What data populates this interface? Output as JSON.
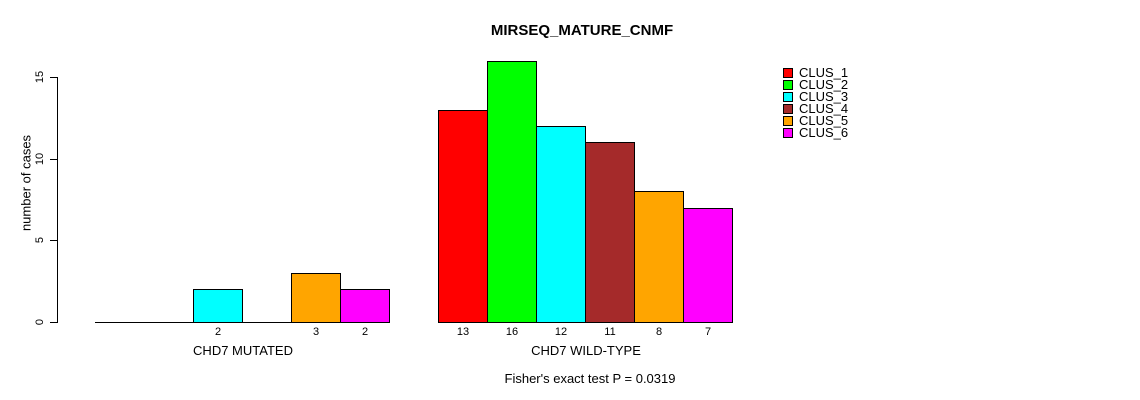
{
  "chart_data": {
    "type": "bar",
    "title": "MIRSEQ_MATURE_CNMF",
    "ylabel": "number of cases",
    "xlabel": "",
    "footnote": "Fisher's exact test P = 0.0319",
    "ylim": [
      0,
      16
    ],
    "yticks": [
      0,
      5,
      10,
      15
    ],
    "grid": false,
    "legend_position": "top-right",
    "value_labels": "shown under each nonzero bar",
    "categories": [
      "CHD7 MUTATED",
      "CHD7 WILD-TYPE"
    ],
    "series": [
      {
        "name": "CLUS_1",
        "color": "#FF0000",
        "values": [
          0,
          13
        ]
      },
      {
        "name": "CLUS_2",
        "color": "#00FF00",
        "values": [
          0,
          16
        ]
      },
      {
        "name": "CLUS_3",
        "color": "#00FFFF",
        "values": [
          2,
          12
        ]
      },
      {
        "name": "CLUS_4",
        "color": "#A52A2A",
        "values": [
          0,
          11
        ]
      },
      {
        "name": "CLUS_5",
        "color": "#FFA500",
        "values": [
          3,
          8
        ]
      },
      {
        "name": "CLUS_6",
        "color": "#FF00FF",
        "values": [
          2,
          7
        ]
      }
    ],
    "axis_color": "#000000",
    "background_color": "#FFFFFF"
  }
}
